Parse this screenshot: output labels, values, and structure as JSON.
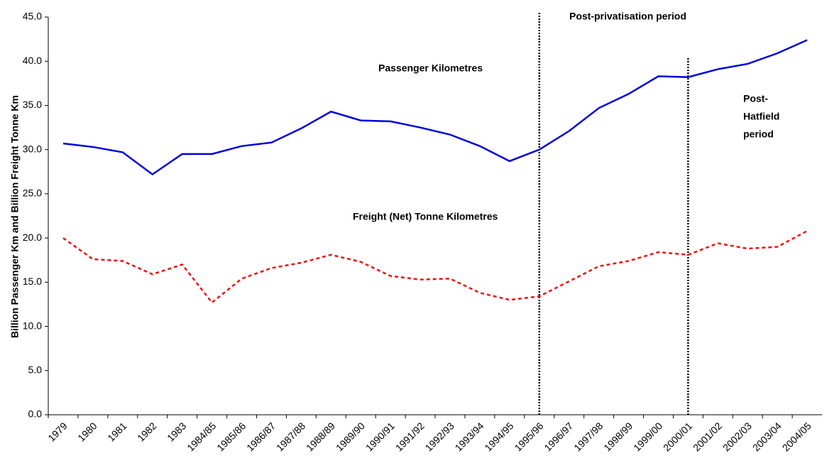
{
  "chart_data": {
    "type": "line",
    "y_axis_label": "Billion Passenger Km and Billion Freight Tonne Km",
    "categories": [
      "1979",
      "1980",
      "1981",
      "1982",
      "1983",
      "1984/85",
      "1985/86",
      "1986/87",
      "1987/88",
      "1988/89",
      "1989/90",
      "1990/91",
      "1991/92",
      "1992/93",
      "1993/94",
      "1994/95",
      "1995/96",
      "1996/97",
      "1997/98",
      "1998/99",
      "1999/00",
      "2000/01",
      "2001/02",
      "2002/03",
      "2003/04",
      "2004/05"
    ],
    "series": [
      {
        "name": "Passenger Kilometres",
        "color": "#0000dd",
        "dash": "solid",
        "values": [
          30.7,
          30.3,
          29.7,
          27.2,
          29.5,
          29.5,
          30.4,
          30.8,
          32.4,
          34.3,
          33.3,
          33.2,
          32.5,
          31.7,
          30.4,
          28.7,
          30.0,
          32.1,
          34.7,
          36.3,
          38.3,
          38.2,
          39.1,
          39.7,
          40.9,
          42.4
        ]
      },
      {
        "name": "Freight (Net) Tonne Kilometres",
        "color": "#ee1111",
        "dash": "dotted",
        "values": [
          20.0,
          17.6,
          17.4,
          15.9,
          17.0,
          12.7,
          15.4,
          16.6,
          17.2,
          18.1,
          17.3,
          15.7,
          15.3,
          15.4,
          13.8,
          13.0,
          13.4,
          15.1,
          16.8,
          17.4,
          18.4,
          18.1,
          19.4,
          18.8,
          19.0,
          20.8
        ]
      }
    ],
    "ylim": [
      0,
      45
    ],
    "yticks": [
      {
        "value": 0,
        "label": "0.0"
      },
      {
        "value": 5,
        "label": "5.0"
      },
      {
        "value": 10,
        "label": "10.0"
      },
      {
        "value": 15,
        "label": "15.0"
      },
      {
        "value": 20,
        "label": "20.0"
      },
      {
        "value": 25,
        "label": "25.0"
      },
      {
        "value": 30,
        "label": "30.0"
      },
      {
        "value": 35,
        "label": "35.0"
      },
      {
        "value": 40,
        "label": "40.0"
      },
      {
        "value": 45,
        "label": "45.0"
      }
    ],
    "period_lines": [
      "1995/96",
      "2000/01"
    ],
    "annotations": [
      "Post-privatisation period",
      [
        "Post-",
        "Hatfield",
        "period"
      ]
    ]
  }
}
